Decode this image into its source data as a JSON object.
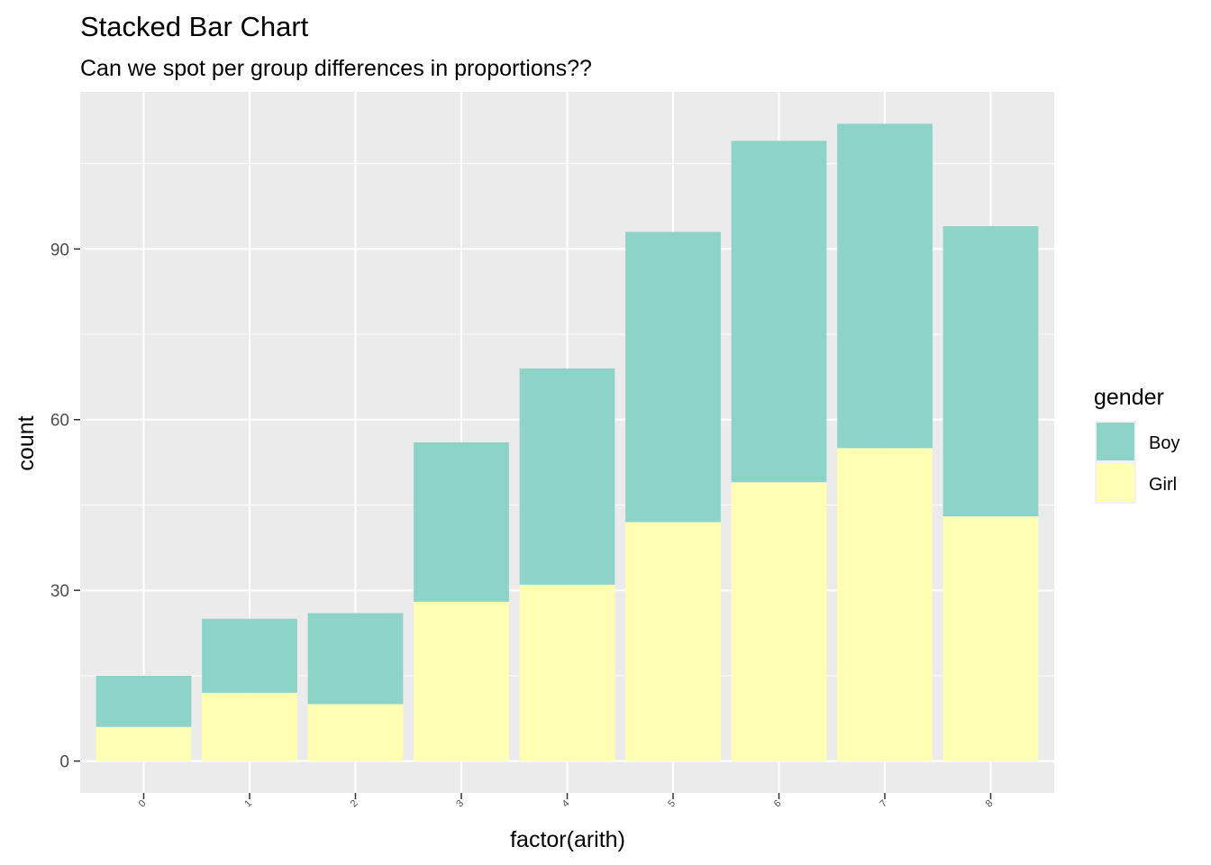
{
  "chart_data": {
    "type": "bar",
    "stacked": true,
    "title": "Stacked Bar Chart",
    "subtitle": "Can we spot per group differences in proportions??",
    "xlabel": "factor(arith)",
    "ylabel": "count",
    "categories": [
      "0",
      "1",
      "2",
      "3",
      "4",
      "5",
      "6",
      "7",
      "8"
    ],
    "series": [
      {
        "name": "Girl",
        "color": "#FFFFB3",
        "values": [
          6,
          12,
          10,
          28,
          31,
          42,
          49,
          55,
          43
        ]
      },
      {
        "name": "Boy",
        "color": "#8DD3C7",
        "values": [
          9,
          13,
          16,
          28,
          38,
          51,
          60,
          57,
          51
        ]
      }
    ],
    "ylim": [
      -5.6,
      117.6
    ],
    "yticks": [
      0,
      30,
      60,
      90
    ],
    "grid": true,
    "panel_background": "#EBEBEB",
    "legend": {
      "title": "gender",
      "position": "right",
      "entries": [
        {
          "label": "Boy",
          "color": "#8DD3C7"
        },
        {
          "label": "Girl",
          "color": "#FFFFB3"
        }
      ]
    }
  }
}
